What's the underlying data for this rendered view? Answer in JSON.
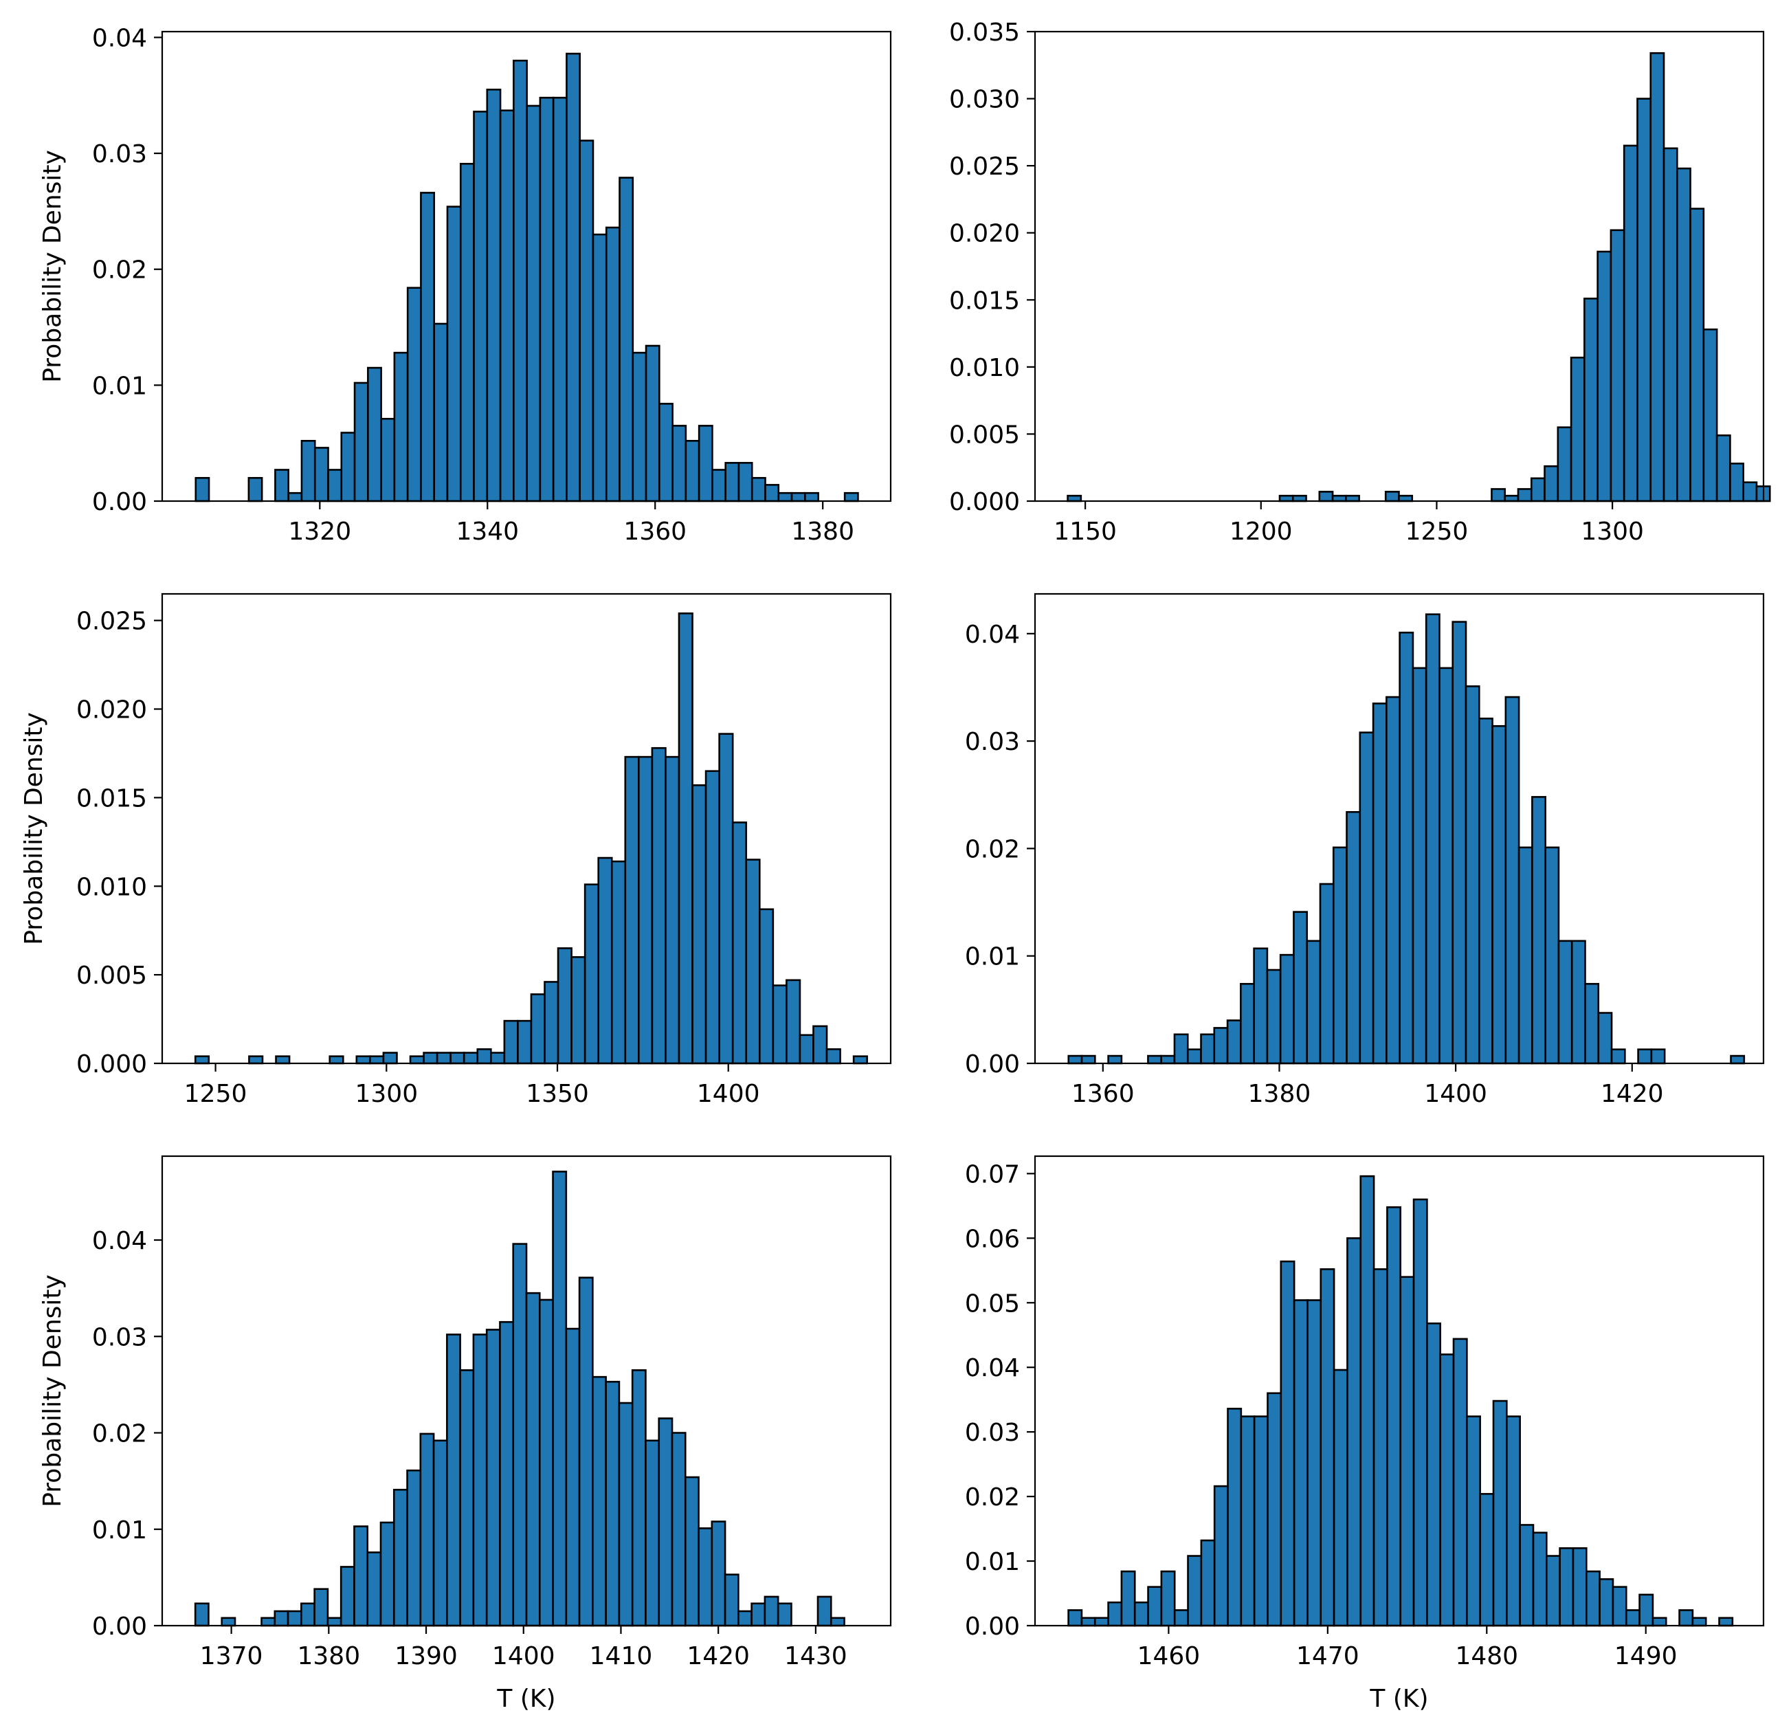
{
  "figure": {
    "ylabel": "Probability Density",
    "xlabel": "T (K)"
  },
  "colors": {
    "bar_fill": "#1f77b4",
    "bar_edge": "#000000",
    "axes": "#000000"
  },
  "chart_data": [
    {
      "type": "bar",
      "ylabel": "Probability Density",
      "xlabel": "",
      "xlim": [
        1301.2,
        1388.1
      ],
      "ylim": [
        0,
        0.0405
      ],
      "xticks": [
        1320,
        1340,
        1360,
        1380
      ],
      "yticks": [
        0.0,
        0.01,
        0.02,
        0.03,
        0.04
      ],
      "ytick_decimals": 2,
      "bin_start": 1305.2,
      "bin_width": 1.58,
      "values": [
        0.002,
        0,
        0,
        0,
        0.002,
        0,
        0.0027,
        0.0007,
        0.0052,
        0.0046,
        0.0027,
        0.0059,
        0.0102,
        0.0115,
        0.0071,
        0.0128,
        0.0184,
        0.0266,
        0.0153,
        0.0254,
        0.0291,
        0.0336,
        0.0355,
        0.0337,
        0.038,
        0.0341,
        0.0348,
        0.0348,
        0.0386,
        0.0311,
        0.023,
        0.0236,
        0.0279,
        0.0128,
        0.0134,
        0.0084,
        0.0065,
        0.0052,
        0.0065,
        0.0027,
        0.0033,
        0.0033,
        0.002,
        0.0014,
        0.0007,
        0.0007,
        0.0007,
        0,
        0,
        0.0007
      ]
    },
    {
      "type": "bar",
      "ylabel": "",
      "xlabel": "",
      "xlim": [
        1135.7,
        1343.0
      ],
      "ylim": [
        0,
        0.035
      ],
      "xticks": [
        1150,
        1200,
        1250,
        1300
      ],
      "yticks": [
        0.0,
        0.005,
        0.01,
        0.015,
        0.02,
        0.025,
        0.03,
        0.035
      ],
      "ytick_decimals": 3,
      "bin_start": 1145.0,
      "bin_width": 3.77,
      "values": [
        0.0004,
        0,
        0,
        0,
        0,
        0,
        0,
        0,
        0,
        0,
        0,
        0,
        0,
        0,
        0,
        0,
        0.0004,
        0.0004,
        0,
        0.0007,
        0.0004,
        0.0004,
        0,
        0,
        0.0007,
        0.0004,
        0,
        0,
        0,
        0,
        0,
        0,
        0.0009,
        0.0004,
        0.0009,
        0.0017,
        0.0026,
        0.0055,
        0.0107,
        0.0151,
        0.0186,
        0.0202,
        0.0265,
        0.03,
        0.0334,
        0.0263,
        0.0248,
        0.0218,
        0.0128,
        0.0049,
        0.0028,
        0.0014,
        0.0011
      ]
    },
    {
      "type": "bar",
      "ylabel": "Probability Density",
      "xlabel": "",
      "xlim": [
        1234.4,
        1447.5
      ],
      "ylim": [
        0,
        0.0265
      ],
      "xticks": [
        1250,
        1300,
        1350,
        1400
      ],
      "yticks": [
        0.0,
        0.005,
        0.01,
        0.015,
        0.02,
        0.025
      ],
      "ytick_decimals": 3,
      "bin_start": 1244.1,
      "bin_width": 3.93,
      "values": [
        0.0004,
        0,
        0,
        0,
        0.0004,
        0,
        0.0004,
        0,
        0,
        0,
        0.0004,
        0,
        0.0004,
        0.0004,
        0.0006,
        0,
        0.0004,
        0.0006,
        0.0006,
        0.0006,
        0.0006,
        0.0008,
        0.0006,
        0.0024,
        0.0024,
        0.0039,
        0.0046,
        0.0065,
        0.006,
        0.0101,
        0.0116,
        0.0114,
        0.0173,
        0.0173,
        0.0178,
        0.0173,
        0.0254,
        0.0157,
        0.0165,
        0.0186,
        0.0136,
        0.0115,
        0.0087,
        0.0044,
        0.0047,
        0.0016,
        0.0021,
        0.0008,
        0,
        0.0004
      ]
    },
    {
      "type": "bar",
      "ylabel": "",
      "xlabel": "",
      "xlim": [
        1352.3,
        1434.9
      ],
      "ylim": [
        0,
        0.0437
      ],
      "xticks": [
        1360,
        1380,
        1400,
        1420
      ],
      "yticks": [
        0.0,
        0.01,
        0.02,
        0.03,
        0.04
      ],
      "ytick_decimals": 2,
      "bin_start": 1356.1,
      "bin_width": 1.502,
      "values": [
        0.0007,
        0.0007,
        0,
        0.0007,
        0,
        0,
        0.0007,
        0.0007,
        0.0027,
        0.0013,
        0.0027,
        0.0033,
        0.004,
        0.0074,
        0.0107,
        0.0087,
        0.0101,
        0.0141,
        0.0114,
        0.0167,
        0.0201,
        0.0234,
        0.0308,
        0.0335,
        0.0341,
        0.0401,
        0.0368,
        0.0418,
        0.0368,
        0.0411,
        0.0351,
        0.0321,
        0.0314,
        0.0341,
        0.0201,
        0.0248,
        0.0201,
        0.0114,
        0.0114,
        0.0074,
        0.0047,
        0.0013,
        0,
        0.0013,
        0.0013,
        0,
        0,
        0,
        0,
        0,
        0.0007
      ]
    },
    {
      "type": "bar",
      "ylabel": "Probability Density",
      "xlabel": "T (K)",
      "xlim": [
        1362.9,
        1437.7
      ],
      "ylim": [
        0,
        0.0487
      ],
      "xticks": [
        1370,
        1380,
        1390,
        1400,
        1410,
        1420,
        1430
      ],
      "yticks": [
        0.0,
        0.01,
        0.02,
        0.03,
        0.04
      ],
      "ytick_decimals": 2,
      "bin_start": 1366.3,
      "bin_width": 1.36,
      "values": [
        0.0023,
        0,
        0.0008,
        0,
        0,
        0.0008,
        0.0015,
        0.0015,
        0.0023,
        0.0038,
        0.0008,
        0.0061,
        0.0103,
        0.0076,
        0.0107,
        0.0141,
        0.0161,
        0.0199,
        0.0192,
        0.0302,
        0.0265,
        0.0302,
        0.0307,
        0.0315,
        0.0396,
        0.0345,
        0.0338,
        0.0471,
        0.0308,
        0.0361,
        0.0258,
        0.0253,
        0.0231,
        0.0265,
        0.0192,
        0.0215,
        0.02,
        0.0154,
        0.0101,
        0.0108,
        0.0053,
        0.0015,
        0.0023,
        0.003,
        0.0023,
        0,
        0,
        0.003,
        0.0008
      ]
    },
    {
      "type": "bar",
      "ylabel": "",
      "xlabel": "T (K)",
      "xlim": [
        1451.6,
        1497.4
      ],
      "ylim": [
        0,
        0.0727
      ],
      "xticks": [
        1460,
        1470,
        1480,
        1490
      ],
      "yticks": [
        0.0,
        0.01,
        0.02,
        0.03,
        0.04,
        0.05,
        0.06,
        0.07
      ],
      "ytick_decimals": 2,
      "bin_start": 1453.7,
      "bin_width": 0.835,
      "values": [
        0.0024,
        0.0012,
        0.0012,
        0.0036,
        0.0084,
        0.0036,
        0.006,
        0.0084,
        0.0024,
        0.0108,
        0.0132,
        0.0216,
        0.0336,
        0.0324,
        0.0324,
        0.036,
        0.0564,
        0.0504,
        0.0504,
        0.0552,
        0.0396,
        0.06,
        0.0696,
        0.0552,
        0.0648,
        0.054,
        0.066,
        0.0468,
        0.042,
        0.0444,
        0.0324,
        0.0204,
        0.0348,
        0.0324,
        0.0156,
        0.0144,
        0.0108,
        0.012,
        0.012,
        0.0084,
        0.0072,
        0.006,
        0.0024,
        0.0048,
        0.0012,
        0,
        0.0024,
        0.0012,
        0,
        0.0012
      ]
    }
  ]
}
